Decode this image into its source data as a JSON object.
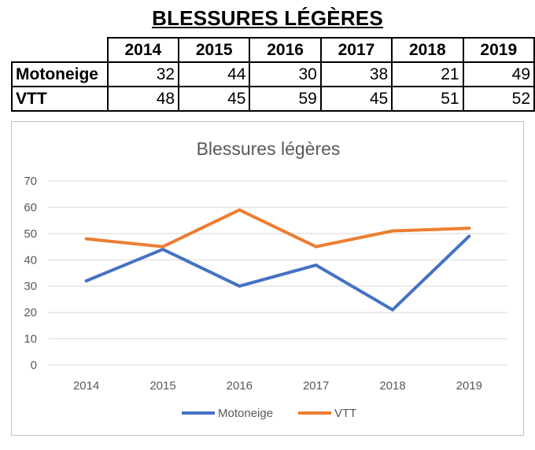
{
  "page": {
    "title": "BLESSURES LÉGÈRES"
  },
  "table": {
    "years": [
      "2014",
      "2015",
      "2016",
      "2017",
      "2018",
      "2019"
    ],
    "rows": [
      {
        "label": "Motoneige",
        "values": [
          "32",
          "44",
          "30",
          "38",
          "21",
          "49"
        ]
      },
      {
        "label": "VTT",
        "values": [
          "48",
          "45",
          "59",
          "45",
          "51",
          "52"
        ]
      }
    ]
  },
  "chart_data": {
    "type": "line",
    "title": "Blessures légères",
    "xlabel": "",
    "ylabel": "",
    "x": [
      "2014",
      "2015",
      "2016",
      "2017",
      "2018",
      "2019"
    ],
    "series": [
      {
        "name": "Motoneige",
        "color": "#4472C4",
        "values": [
          32,
          44,
          30,
          38,
          21,
          49
        ]
      },
      {
        "name": "VTT",
        "color": "#ED7D31",
        "values": [
          48,
          45,
          59,
          45,
          51,
          52
        ]
      }
    ],
    "ylim": [
      0,
      70
    ],
    "yticks": [
      0,
      10,
      20,
      30,
      40,
      50,
      60,
      70
    ],
    "grid": true,
    "legend": "bottom",
    "gridColor": "#d9d9d9",
    "textColor": "#595959"
  }
}
